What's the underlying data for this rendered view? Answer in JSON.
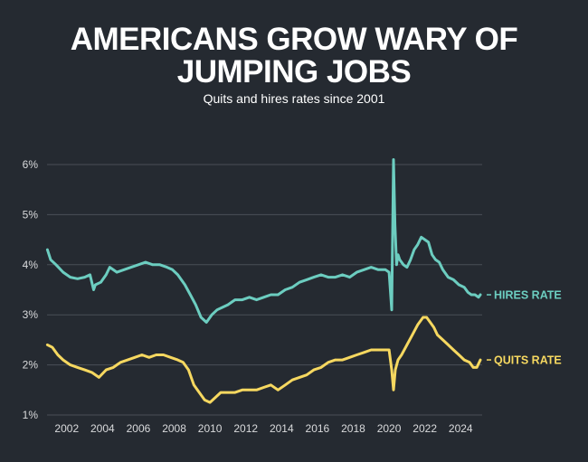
{
  "header": {
    "title_line1": "AMERICANS GROW WARY OF",
    "title_line2": "JUMPING JOBS",
    "subtitle": "Quits and hires rates since 2001"
  },
  "colors": {
    "background": "#252a31",
    "hires": "#6ccdc0",
    "quits": "#f6d860",
    "grid": "#4a4f57"
  },
  "chart_data": {
    "type": "line",
    "title": "AMERICANS GROW WARY OF JUMPING JOBS",
    "subtitle": "Quits and hires rates since 2001",
    "xlabel": "",
    "ylabel": "",
    "xlim": [
      2000.9,
      2025.2
    ],
    "ylim": [
      1,
      6
    ],
    "y_ticks": [
      1,
      2,
      3,
      4,
      5,
      6
    ],
    "y_tick_labels": [
      "1%",
      "2%",
      "3%",
      "4%",
      "5%",
      "6%"
    ],
    "x_ticks": [
      2002,
      2004,
      2006,
      2008,
      2010,
      2012,
      2014,
      2016,
      2018,
      2020,
      2022,
      2024
    ],
    "x_tick_labels": [
      "2002",
      "2004",
      "2006",
      "2008",
      "2010",
      "2012",
      "2014",
      "2016",
      "2018",
      "2020",
      "2022",
      "2024"
    ],
    "grid": true,
    "legend": "inline labels at right end of lines",
    "series": [
      {
        "name": "HIRES RATE",
        "color": "#6ccdc0",
        "x": [
          2000.92,
          2001.1,
          2001.4,
          2001.8,
          2002.2,
          2002.6,
          2003.0,
          2003.3,
          2003.5,
          2003.6,
          2003.9,
          2004.2,
          2004.4,
          2004.8,
          2005.2,
          2005.6,
          2006.0,
          2006.4,
          2006.8,
          2007.2,
          2007.6,
          2007.9,
          2008.2,
          2008.6,
          2008.9,
          2009.2,
          2009.5,
          2009.8,
          2010.1,
          2010.4,
          2010.7,
          2011.0,
          2011.4,
          2011.8,
          2012.2,
          2012.6,
          2013.0,
          2013.4,
          2013.8,
          2014.2,
          2014.6,
          2015.0,
          2015.4,
          2015.8,
          2016.2,
          2016.6,
          2017.0,
          2017.4,
          2017.8,
          2018.2,
          2018.6,
          2019.0,
          2019.4,
          2019.8,
          2020.0,
          2020.15,
          2020.25,
          2020.33,
          2020.42,
          2020.5,
          2020.6,
          2020.8,
          2021.0,
          2021.2,
          2021.4,
          2021.6,
          2021.8,
          2022.0,
          2022.2,
          2022.4,
          2022.6,
          2022.8,
          2023.0,
          2023.3,
          2023.6,
          2023.9,
          2024.2,
          2024.4,
          2024.6,
          2024.8,
          2025.0,
          2025.1
        ],
        "values": [
          4.3,
          4.1,
          4.0,
          3.85,
          3.75,
          3.72,
          3.75,
          3.8,
          3.5,
          3.6,
          3.65,
          3.8,
          3.95,
          3.85,
          3.9,
          3.95,
          4.0,
          4.05,
          4.0,
          4.0,
          3.95,
          3.9,
          3.8,
          3.6,
          3.4,
          3.2,
          2.95,
          2.85,
          3.0,
          3.1,
          3.15,
          3.2,
          3.3,
          3.3,
          3.35,
          3.3,
          3.35,
          3.4,
          3.4,
          3.5,
          3.55,
          3.65,
          3.7,
          3.75,
          3.8,
          3.75,
          3.75,
          3.8,
          3.75,
          3.85,
          3.9,
          3.95,
          3.9,
          3.9,
          3.85,
          3.1,
          6.1,
          4.8,
          4.0,
          4.2,
          4.1,
          4.0,
          3.95,
          4.1,
          4.3,
          4.4,
          4.55,
          4.5,
          4.45,
          4.2,
          4.1,
          4.05,
          3.9,
          3.75,
          3.7,
          3.6,
          3.55,
          3.45,
          3.4,
          3.4,
          3.35,
          3.4
        ]
      },
      {
        "name": "QUITS RATE",
        "color": "#f6d860",
        "x": [
          2000.92,
          2001.2,
          2001.5,
          2001.8,
          2002.2,
          2002.6,
          2003.0,
          2003.4,
          2003.8,
          2004.2,
          2004.6,
          2005.0,
          2005.4,
          2005.8,
          2006.2,
          2006.6,
          2007.0,
          2007.4,
          2007.8,
          2008.2,
          2008.5,
          2008.8,
          2009.1,
          2009.4,
          2009.7,
          2010.0,
          2010.3,
          2010.6,
          2011.0,
          2011.4,
          2011.8,
          2012.2,
          2012.6,
          2013.0,
          2013.4,
          2013.8,
          2014.2,
          2014.6,
          2015.0,
          2015.4,
          2015.8,
          2016.2,
          2016.6,
          2017.0,
          2017.4,
          2017.8,
          2018.2,
          2018.6,
          2019.0,
          2019.4,
          2019.8,
          2020.0,
          2020.15,
          2020.25,
          2020.35,
          2020.5,
          2020.7,
          2021.0,
          2021.3,
          2021.6,
          2021.9,
          2022.1,
          2022.3,
          2022.5,
          2022.7,
          2023.0,
          2023.3,
          2023.6,
          2023.9,
          2024.2,
          2024.5,
          2024.7,
          2024.9,
          2025.1
        ],
        "values": [
          2.4,
          2.35,
          2.2,
          2.1,
          2.0,
          1.95,
          1.9,
          1.85,
          1.75,
          1.9,
          1.95,
          2.05,
          2.1,
          2.15,
          2.2,
          2.15,
          2.2,
          2.2,
          2.15,
          2.1,
          2.05,
          1.9,
          1.6,
          1.45,
          1.3,
          1.25,
          1.35,
          1.45,
          1.45,
          1.45,
          1.5,
          1.5,
          1.5,
          1.55,
          1.6,
          1.5,
          1.6,
          1.7,
          1.75,
          1.8,
          1.9,
          1.95,
          2.05,
          2.1,
          2.1,
          2.15,
          2.2,
          2.25,
          2.3,
          2.3,
          2.3,
          2.3,
          1.9,
          1.5,
          1.9,
          2.1,
          2.2,
          2.4,
          2.6,
          2.8,
          2.95,
          2.95,
          2.85,
          2.75,
          2.6,
          2.5,
          2.4,
          2.3,
          2.2,
          2.1,
          2.05,
          1.95,
          1.95,
          2.1
        ]
      }
    ]
  }
}
